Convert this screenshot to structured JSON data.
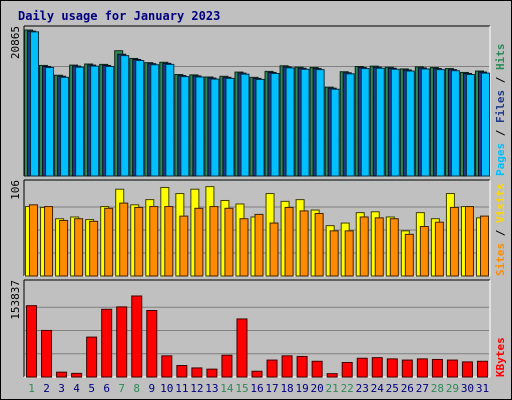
{
  "chart_data": {
    "type": "bar",
    "title": "Daily usage for January 2023",
    "categories": [
      "1",
      "2",
      "3",
      "4",
      "5",
      "6",
      "7",
      "8",
      "9",
      "10",
      "11",
      "12",
      "13",
      "14",
      "15",
      "16",
      "17",
      "18",
      "19",
      "20",
      "21",
      "22",
      "23",
      "24",
      "25",
      "26",
      "27",
      "28",
      "29",
      "30",
      "31"
    ],
    "weekend_days": [
      "1",
      "7",
      "8",
      "14",
      "15",
      "21",
      "22",
      "28",
      "29"
    ],
    "x_label_colors": {
      "weekday": "#000080",
      "weekend": "#2e8b57"
    },
    "panels": [
      {
        "id": "pages-files-hits",
        "ymax_label": "20865",
        "ymax": 20865,
        "ylabel_parts": [
          {
            "text": "Pages",
            "color": "#00bfff"
          },
          {
            "text": " / ",
            "color": "#000000"
          },
          {
            "text": "Files",
            "color": "#1e3a8a"
          },
          {
            "text": " / ",
            "color": "#000000"
          },
          {
            "text": "Hits",
            "color": "#2e8b57"
          }
        ],
        "series": [
          {
            "name": "Hits",
            "color": "#2e8b57",
            "values": [
              20865,
              15800,
              14400,
              15850,
              16000,
              15950,
              17900,
              16800,
              16200,
              16250,
              14500,
              14450,
              14150,
              14250,
              14850,
              14100,
              14950,
              15750,
              15550,
              15500,
              12700,
              14900,
              15650,
              15700,
              15550,
              15300,
              15600,
              15500,
              15350,
              14800,
              15000
            ]
          },
          {
            "name": "Files",
            "color": "#1e3a8a",
            "values": [
              20700,
              15650,
              14250,
              15700,
              15850,
              15800,
              17400,
              16650,
              16050,
              16100,
              14350,
              14300,
              14000,
              14100,
              14700,
              13950,
              14800,
              15600,
              15400,
              15350,
              12550,
              14750,
              15500,
              15550,
              15400,
              15150,
              15450,
              15350,
              15200,
              14650,
              14850
            ]
          },
          {
            "name": "Pages",
            "color": "#00bfff",
            "values": [
              20600,
              15500,
              14100,
              15550,
              15700,
              15650,
              17200,
              16500,
              15900,
              15950,
              14200,
              14150,
              13850,
              13950,
              14550,
              13800,
              14650,
              15450,
              15250,
              15200,
              12400,
              14600,
              15350,
              15400,
              15250,
              15000,
              15300,
              15200,
              15050,
              14500,
              14700
            ]
          }
        ]
      },
      {
        "id": "visits-sites",
        "ymax_label": "106",
        "ymax": 106,
        "ylabel_parts": [
          {
            "text": "Sites",
            "color": "#ff8c00"
          },
          {
            "text": " / ",
            "color": "#000000"
          },
          {
            "text": "Visits",
            "color": "#ffd700"
          }
        ],
        "series": [
          {
            "name": "Visits",
            "color": "#ffff00",
            "values": [
              80,
              79,
              66,
              68,
              65,
              80,
              100,
              82,
              88,
              102,
              95,
              100,
              103,
              87,
              83,
              68,
              95,
              86,
              88,
              76,
              58,
              61,
              73,
              74,
              68,
              52,
              73,
              66,
              95,
              80,
              67
            ]
          },
          {
            "name": "Sites",
            "color": "#ff8c00",
            "values": [
              82,
              80,
              64,
              66,
              63,
              78,
              84,
              79,
              80,
              80,
              69,
              78,
              80,
              78,
              66,
              71,
              61,
              79,
              75,
              72,
              52,
              52,
              68,
              67,
              66,
              48,
              57,
              62,
              79,
              80,
              69
            ]
          }
        ]
      },
      {
        "id": "kbytes",
        "ymax_label": "153837",
        "ymax": 153837,
        "ylabel_parts": [
          {
            "text": "KBytes",
            "color": "#ff0000"
          }
        ],
        "series": [
          {
            "name": "KBytes",
            "color": "#ff0000",
            "values": [
              118000,
              77000,
              8000,
              6000,
              66000,
              112000,
              116000,
              134000,
              110000,
              35000,
              19000,
              15000,
              13000,
              36000,
              96000,
              9500,
              28000,
              35000,
              34000,
              26000,
              5500,
              24000,
              31000,
              32000,
              30000,
              28000,
              30000,
              29000,
              28000,
              25000,
              26000
            ]
          }
        ]
      }
    ]
  }
}
